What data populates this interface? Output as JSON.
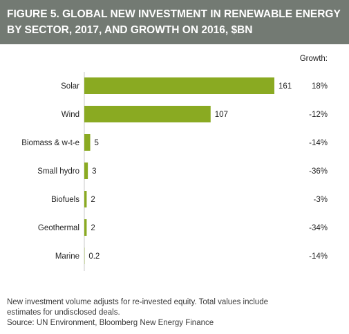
{
  "header": {
    "title_line1": "FIGURE 5. GLOBAL NEW INVESTMENT IN RENEWABLE ENERGY",
    "title_line2": "BY SECTOR, 2017, AND GROWTH ON 2016, $BN"
  },
  "colors": {
    "header_bg": "#737a73",
    "bar": "#8aaa22",
    "axis": "#c8c8c8"
  },
  "chart_data": {
    "type": "bar",
    "orientation": "horizontal",
    "categories": [
      "Solar",
      "Wind",
      "Biomass & w-t-e",
      "Small hydro",
      "Biofuels",
      "Geothermal",
      "Marine"
    ],
    "values": [
      161,
      107,
      5,
      3,
      2,
      2,
      0.2
    ],
    "value_labels": [
      "161",
      "107",
      "5",
      "3",
      "2",
      "2",
      "0.2"
    ],
    "growth_header": "Growth:",
    "growth": [
      "18%",
      "-12%",
      "-14%",
      "-36%",
      "-3%",
      "-34%",
      "-14%"
    ],
    "xlim": [
      0,
      161
    ],
    "grid": false,
    "legend": "none"
  },
  "notes": {
    "line1": "New investment volume adjusts for re-invested equity. Total values include",
    "line2": "estimates for undisclosed deals.",
    "source": "Source: UN Environment, Bloomberg New Energy Finance"
  }
}
